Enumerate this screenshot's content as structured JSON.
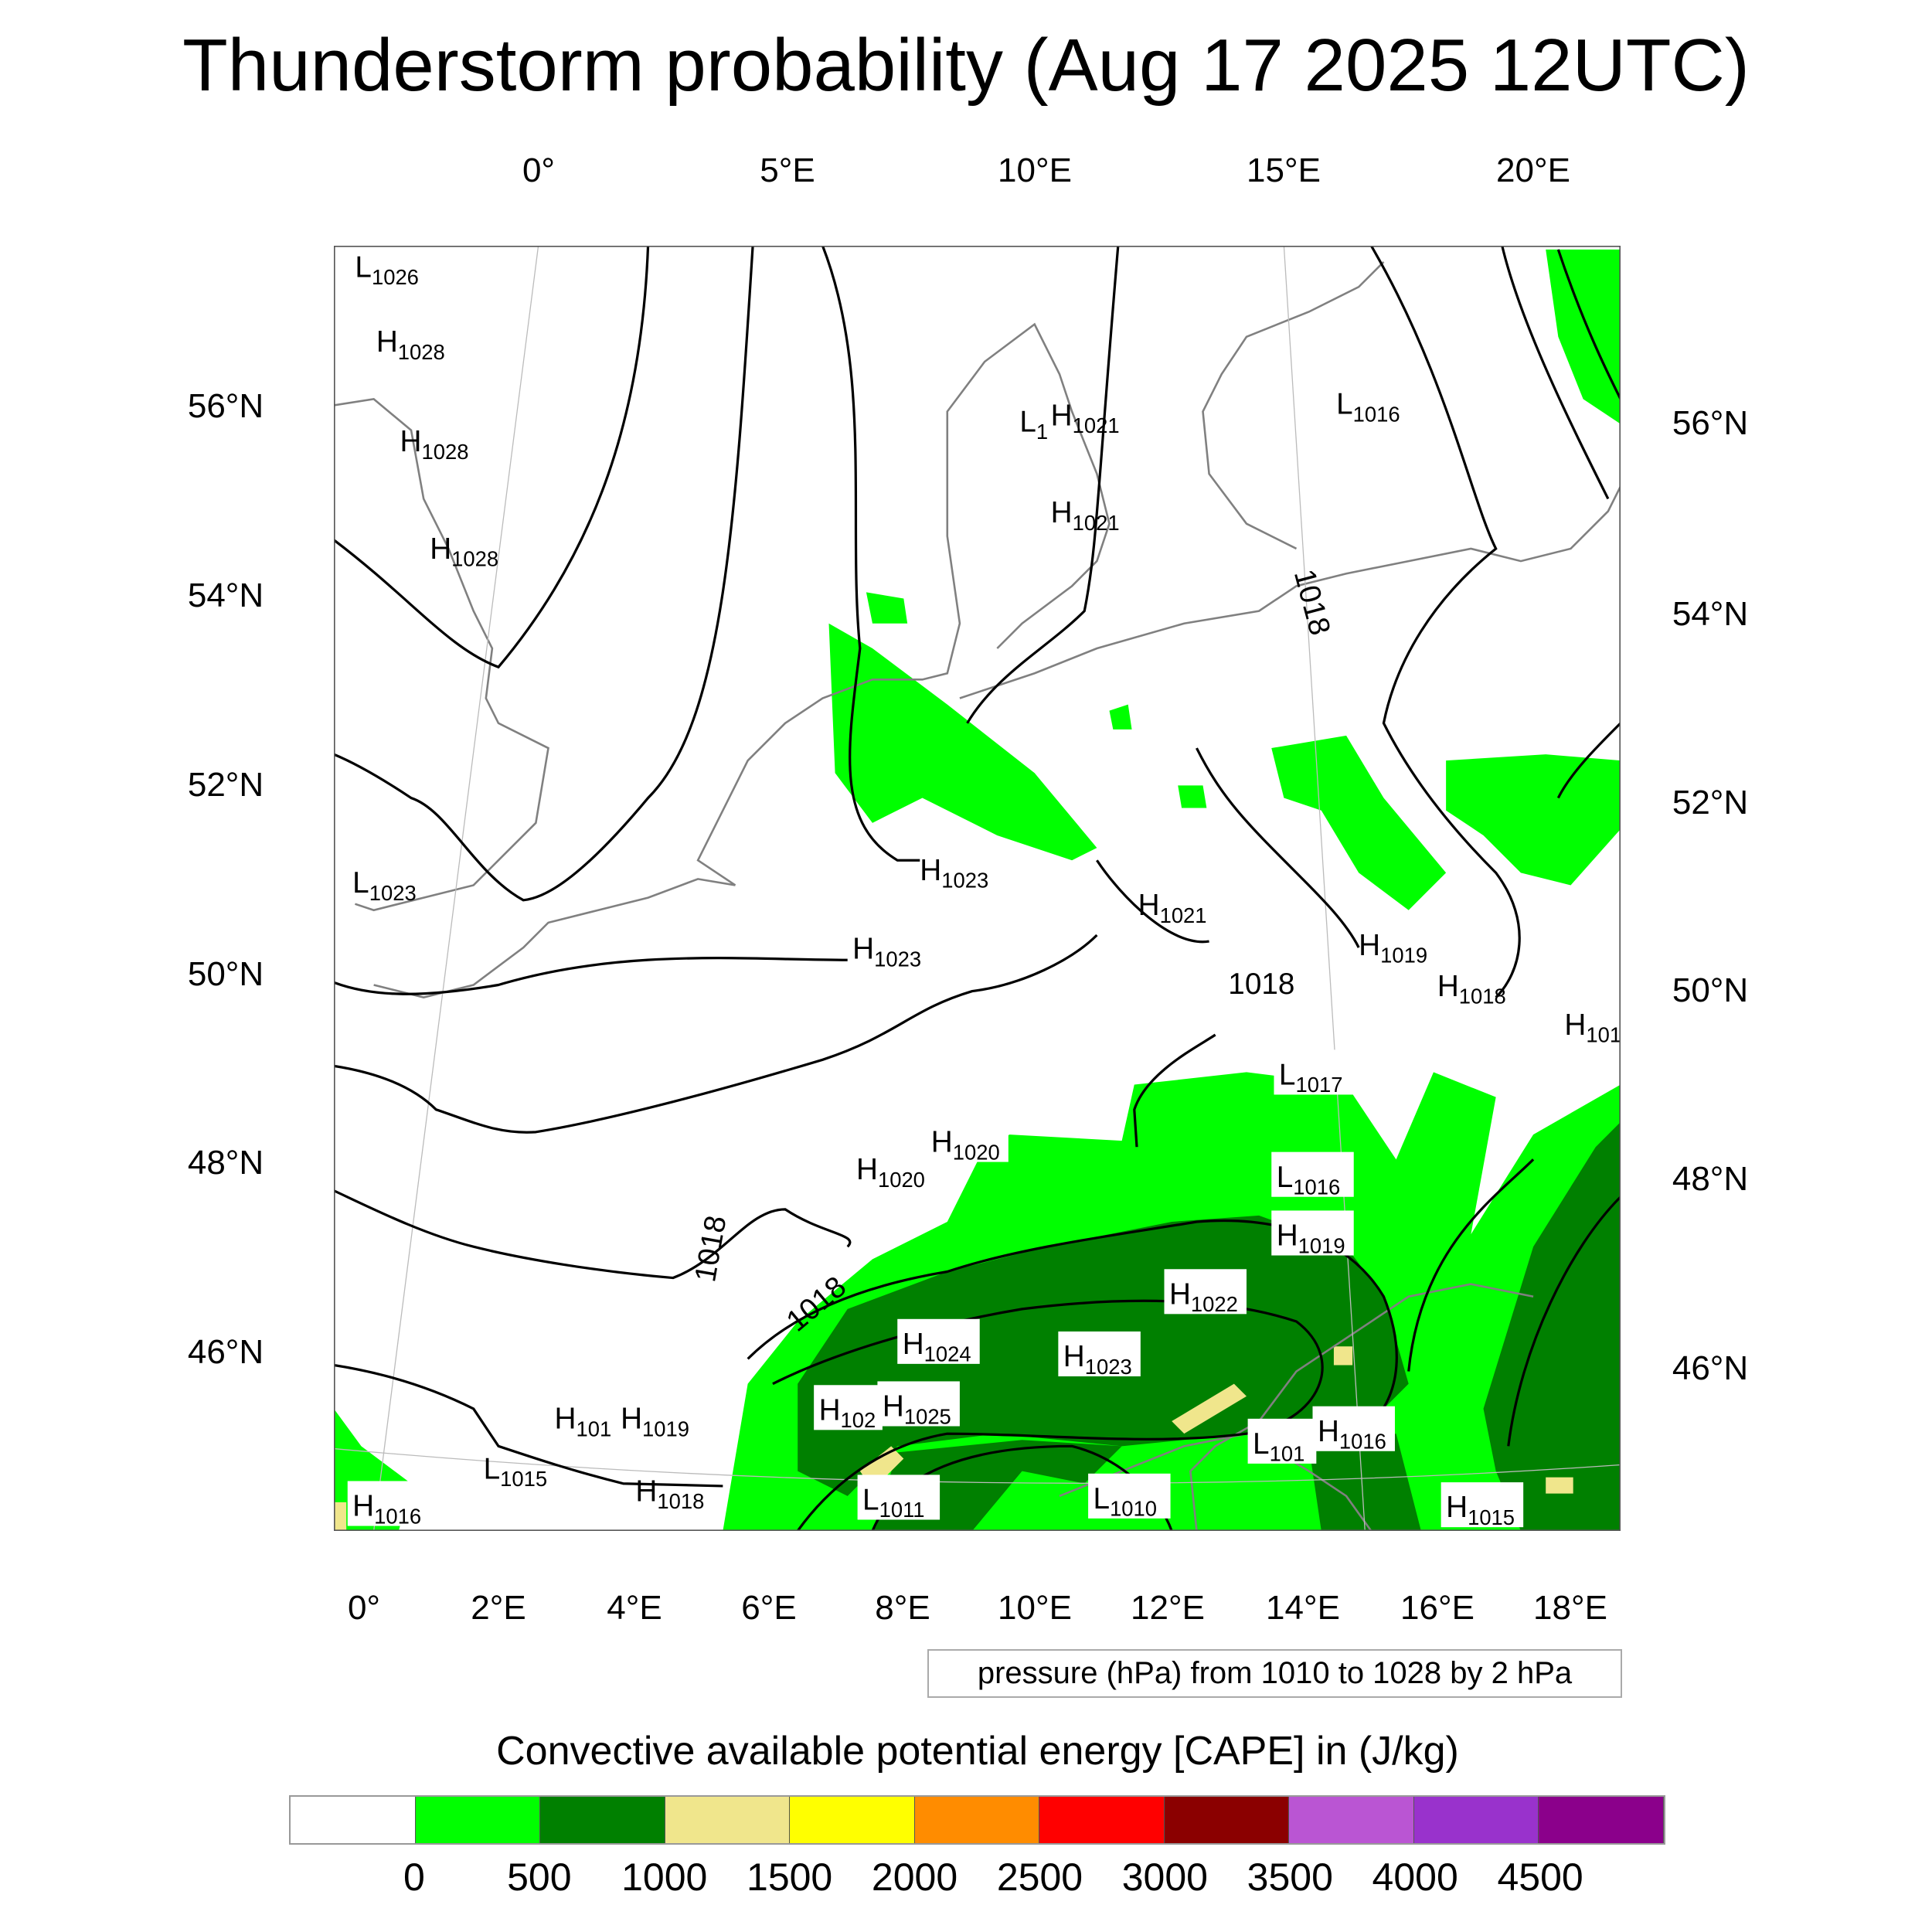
{
  "title": "Thunderstorm probability (Aug 17 2025 12UTC)",
  "axes": {
    "top_lon": [
      "0°",
      "5°E",
      "10°E",
      "15°E",
      "20°E"
    ],
    "bottom_lon": [
      "0°",
      "2°E",
      "4°E",
      "6°E",
      "8°E",
      "10°E",
      "12°E",
      "14°E",
      "16°E",
      "18°E"
    ],
    "left_lat": [
      "56°N",
      "54°N",
      "52°N",
      "50°N",
      "48°N",
      "46°N"
    ],
    "right_lat": [
      "56°N",
      "54°N",
      "52°N",
      "50°N",
      "48°N",
      "46°N"
    ]
  },
  "map": {
    "pressure_labels": [
      {
        "letter": "L",
        "value": "1026"
      },
      {
        "letter": "H",
        "value": "1028"
      },
      {
        "letter": "H",
        "value": "1028"
      },
      {
        "letter": "H",
        "value": "1028"
      },
      {
        "letter": "L",
        "value": "1023"
      },
      {
        "letter": "L",
        "value": "1"
      },
      {
        "letter": "H",
        "value": "1021"
      },
      {
        "letter": "H",
        "value": "1021"
      },
      {
        "letter": "L",
        "value": "1016"
      },
      {
        "letter": "H",
        "value": "1023"
      },
      {
        "letter": "H",
        "value": "1023"
      },
      {
        "letter": "H",
        "value": "1021"
      },
      {
        "letter": "H",
        "value": "1019"
      },
      {
        "letter": "H",
        "value": "1018"
      },
      {
        "letter": "H",
        "value": "101"
      },
      {
        "letter": "L",
        "value": "1017"
      },
      {
        "letter": "L",
        "value": "1016"
      },
      {
        "letter": "H",
        "value": "1019"
      },
      {
        "letter": "H",
        "value": "1020"
      },
      {
        "letter": "H",
        "value": "1020"
      },
      {
        "letter": "H",
        "value": "1022"
      },
      {
        "letter": "H",
        "value": "1024"
      },
      {
        "letter": "H",
        "value": "1023"
      },
      {
        "letter": "H",
        "value": "102"
      },
      {
        "letter": "H",
        "value": "1025"
      },
      {
        "letter": "H",
        "value": "101"
      },
      {
        "letter": "H",
        "value": "1019"
      },
      {
        "letter": "L",
        "value": "1015"
      },
      {
        "letter": "H",
        "value": "1018"
      },
      {
        "letter": "L",
        "value": "1011"
      },
      {
        "letter": "L",
        "value": "1010"
      },
      {
        "letter": "L",
        "value": "101"
      },
      {
        "letter": "H",
        "value": "1016"
      },
      {
        "letter": "H",
        "value": "1015"
      },
      {
        "letter": "H",
        "value": "1016"
      }
    ],
    "contour_labels": [
      "1018",
      "1018",
      "1018",
      "1018"
    ]
  },
  "legend": {
    "pressure_text": "pressure (hPa) from 1010 to 1028 by 2 hPa"
  },
  "colorbar": {
    "title": "Convective available potential energy [CAPE] in (J/kg)",
    "colors": [
      "#ffffff",
      "#00ff00",
      "#008000",
      "#f0e68c",
      "#ffff00",
      "#ff8c00",
      "#ff0000",
      "#8b0000",
      "#ba55d3",
      "#9932cc",
      "#8b008b"
    ],
    "labels": [
      "0",
      "500",
      "1000",
      "1500",
      "2000",
      "2500",
      "3000",
      "3500",
      "4000",
      "4500"
    ]
  }
}
